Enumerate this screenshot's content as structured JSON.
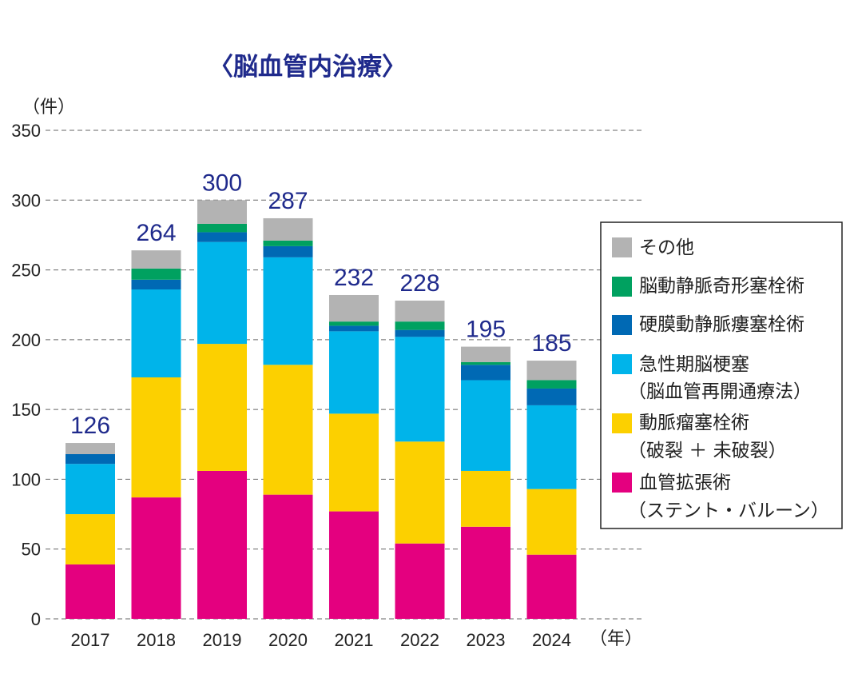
{
  "chart_data": {
    "type": "bar",
    "stacked": true,
    "title": "〈脳血管内治療〉",
    "ylabel": "（件）",
    "xlabel": "（年）",
    "ylim": [
      0,
      350
    ],
    "yticks": [
      0,
      50,
      100,
      150,
      200,
      250,
      300,
      350
    ],
    "grid": true,
    "legend_position": "right",
    "categories": [
      "2017",
      "2018",
      "2019",
      "2020",
      "2021",
      "2022",
      "2023",
      "2024"
    ],
    "totals": [
      126,
      264,
      300,
      287,
      232,
      228,
      195,
      185
    ],
    "series": [
      {
        "name": "血管拡張術",
        "sublabel": "（ステント・バルーン）",
        "color": "#e4007f",
        "values": [
          39,
          87,
          106,
          89,
          77,
          54,
          66,
          46
        ]
      },
      {
        "name": "動脈瘤塞栓術",
        "sublabel": "（破裂 ＋ 未破裂）",
        "color": "#fcd000",
        "values": [
          36,
          86,
          91,
          93,
          70,
          73,
          40,
          47
        ]
      },
      {
        "name": "急性期脳梗塞",
        "sublabel": "（脳血管再開通療法）",
        "color": "#00b4ea",
        "values": [
          36,
          63,
          73,
          77,
          59,
          75,
          65,
          60
        ]
      },
      {
        "name": "硬膜動静脈瘻塞栓術",
        "sublabel": "",
        "color": "#0069b4",
        "values": [
          7,
          7,
          7,
          8,
          4,
          5,
          11,
          12
        ]
      },
      {
        "name": "脳動静脈奇形塞栓術",
        "sublabel": "",
        "color": "#00a160",
        "values": [
          0,
          8,
          6,
          4,
          3,
          6,
          2,
          6
        ]
      },
      {
        "name": "その他",
        "sublabel": "",
        "color": "#b3b3b3",
        "values": [
          8,
          13,
          17,
          16,
          19,
          15,
          11,
          14
        ]
      }
    ],
    "legend_order": [
      5,
      4,
      3,
      2,
      1,
      0
    ]
  }
}
